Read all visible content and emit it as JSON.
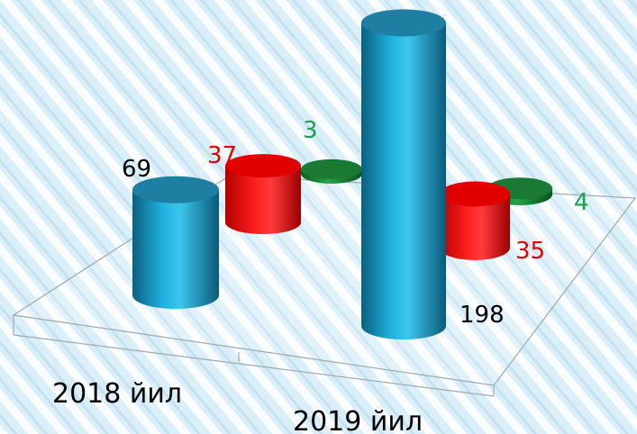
{
  "chart_data": {
    "type": "bar",
    "style": "3d-cylinder",
    "categories": [
      "2018 йил",
      "2019 йил"
    ],
    "series": [
      {
        "values": [
          69,
          198
        ],
        "color": "#1aa3cc",
        "label_color": "#000000"
      },
      {
        "values": [
          37,
          35
        ],
        "color": "#ee1111",
        "label_color": "#e60000"
      },
      {
        "values": [
          3,
          4
        ],
        "color": "#1f8f3a",
        "label_color": "#17a34a"
      }
    ],
    "data_labels": [
      "69",
      "37",
      "3",
      "198",
      "35",
      "4"
    ],
    "grid": false,
    "legend": "none"
  }
}
